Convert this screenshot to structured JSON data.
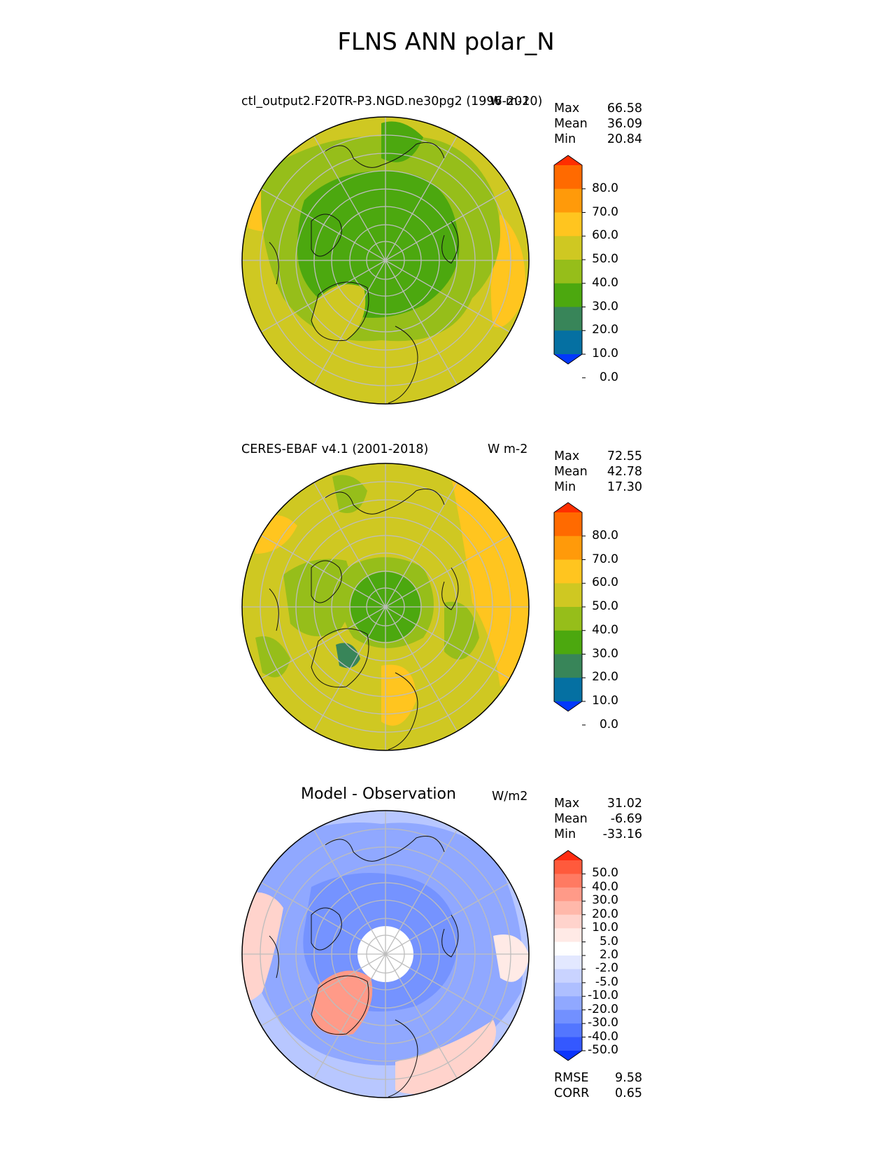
{
  "figure_title": "FLNS ANN polar_N",
  "panels": [
    {
      "title_left": "ctl_output2.F20TR-P3.NGD.ne30pg2 (1996-2010)",
      "title_right": "W m-2",
      "stats": [
        {
          "label": "Max",
          "value": "66.58"
        },
        {
          "label": "Mean",
          "value": "36.09"
        },
        {
          "label": "Min",
          "value": "20.84"
        }
      ],
      "colorbar": {
        "levels": [
          "80.0",
          "70.0",
          "60.0",
          "50.0",
          "40.0",
          "30.0",
          "20.0",
          "10.0",
          "0.0"
        ],
        "colors": [
          "#ff2e00",
          "#ff6a00",
          "#ff9a0a",
          "#ffc51f",
          "#cfc822",
          "#96be1a",
          "#4ca80f",
          "#388559",
          "#0570a2",
          "#0238fc"
        ]
      }
    },
    {
      "title_left": "CERES-EBAF v4.1 (2001-2018)",
      "title_right": "W m-2",
      "stats": [
        {
          "label": "Max",
          "value": "72.55"
        },
        {
          "label": "Mean",
          "value": "42.78"
        },
        {
          "label": "Min",
          "value": "17.30"
        }
      ],
      "colorbar": {
        "levels": [
          "80.0",
          "70.0",
          "60.0",
          "50.0",
          "40.0",
          "30.0",
          "20.0",
          "10.0",
          "0.0"
        ],
        "colors": [
          "#ff2e00",
          "#ff6a00",
          "#ff9a0a",
          "#ffc51f",
          "#cfc822",
          "#96be1a",
          "#4ca80f",
          "#388559",
          "#0570a2",
          "#0238fc"
        ]
      }
    },
    {
      "title_left": "Model - Observation",
      "title_right": "W/m2",
      "stats": [
        {
          "label": "Max",
          "value": "31.02"
        },
        {
          "label": "Mean",
          "value": "-6.69"
        },
        {
          "label": "Min",
          "value": "-33.16"
        }
      ],
      "colorbar": {
        "levels": [
          "50.0",
          "40.0",
          "30.0",
          "20.0",
          "10.0",
          "5.0",
          "2.0",
          "-2.0",
          "-5.0",
          "-10.0",
          "-20.0",
          "-30.0",
          "-40.0",
          "-50.0"
        ],
        "colors": [
          "#ff2b10",
          "#ff5a3c",
          "#ff7a62",
          "#ff9a88",
          "#ffb8aa",
          "#ffd3cc",
          "#ffeae6",
          "#ffffff",
          "#e3e8ff",
          "#c9d3ff",
          "#aebfff",
          "#90a8ff",
          "#7290ff",
          "#5376ff",
          "#3458ff",
          "#0b34fc"
        ]
      },
      "metrics": [
        {
          "label": "RMSE",
          "value": "9.58"
        },
        {
          "label": "CORR",
          "value": "0.65"
        }
      ]
    }
  ]
}
